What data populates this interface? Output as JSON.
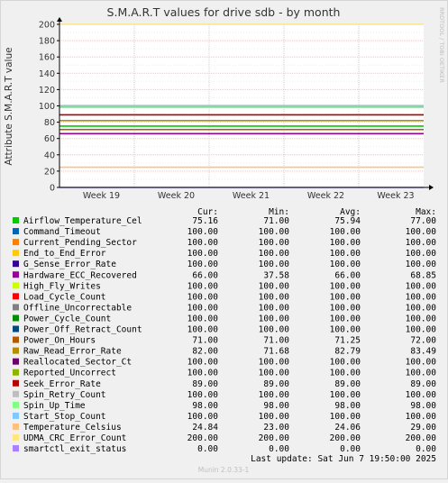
{
  "chart_data": {
    "type": "line",
    "title": "S.M.A.R.T values for drive sdb - by month",
    "ylabel": "Attribute S.M.A.R.T value",
    "ylim": [
      0,
      200
    ],
    "yticks": [
      0,
      20,
      40,
      60,
      80,
      100,
      120,
      140,
      160,
      180,
      200
    ],
    "x_ticks": [
      "Week 19",
      "Week 20",
      "Week 21",
      "Week 22",
      "Week 23"
    ],
    "grid": true,
    "watermark": "RRDTOOL / TOBI OETIKER",
    "columns": [
      "Cur:",
      "Min:",
      "Avg:",
      "Max:"
    ],
    "series": [
      {
        "name": "Airflow_Temperature_Cel",
        "color": "#00cc00",
        "cur": "75.16",
        "min": "71.00",
        "avg": "75.94",
        "max": "77.00"
      },
      {
        "name": "Command_Timeout",
        "color": "#0066b3",
        "cur": "100.00",
        "min": "100.00",
        "avg": "100.00",
        "max": "100.00"
      },
      {
        "name": "Current_Pending_Sector",
        "color": "#ff8000",
        "cur": "100.00",
        "min": "100.00",
        "avg": "100.00",
        "max": "100.00"
      },
      {
        "name": "End_to_End_Error",
        "color": "#ffcc00",
        "cur": "100.00",
        "min": "100.00",
        "avg": "100.00",
        "max": "100.00"
      },
      {
        "name": "G_Sense_Error_Rate",
        "color": "#330099",
        "cur": "100.00",
        "min": "100.00",
        "avg": "100.00",
        "max": "100.00"
      },
      {
        "name": "Hardware_ECC_Recovered",
        "color": "#990099",
        "cur": "66.00",
        "min": "37.58",
        "avg": "66.00",
        "max": "68.85"
      },
      {
        "name": "High_Fly_Writes",
        "color": "#ccff00",
        "cur": "100.00",
        "min": "100.00",
        "avg": "100.00",
        "max": "100.00"
      },
      {
        "name": "Load_Cycle_Count",
        "color": "#ff0000",
        "cur": "100.00",
        "min": "100.00",
        "avg": "100.00",
        "max": "100.00"
      },
      {
        "name": "Offline_Uncorrectable",
        "color": "#808080",
        "cur": "100.00",
        "min": "100.00",
        "avg": "100.00",
        "max": "100.00"
      },
      {
        "name": "Power_Cycle_Count",
        "color": "#008f00",
        "cur": "100.00",
        "min": "100.00",
        "avg": "100.00",
        "max": "100.00"
      },
      {
        "name": "Power_Off_Retract_Count",
        "color": "#00487d",
        "cur": "100.00",
        "min": "100.00",
        "avg": "100.00",
        "max": "100.00"
      },
      {
        "name": "Power_On_Hours",
        "color": "#b35a00",
        "cur": "71.00",
        "min": "71.00",
        "avg": "71.25",
        "max": "72.00"
      },
      {
        "name": "Raw_Read_Error_Rate",
        "color": "#b38f00",
        "cur": "82.00",
        "min": "71.68",
        "avg": "82.79",
        "max": "83.49"
      },
      {
        "name": "Reallocated_Sector_Ct",
        "color": "#6b006b",
        "cur": "100.00",
        "min": "100.00",
        "avg": "100.00",
        "max": "100.00"
      },
      {
        "name": "Reported_Uncorrect",
        "color": "#8fb300",
        "cur": "100.00",
        "min": "100.00",
        "avg": "100.00",
        "max": "100.00"
      },
      {
        "name": "Seek_Error_Rate",
        "color": "#b30000",
        "cur": "89.00",
        "min": "89.00",
        "avg": "89.00",
        "max": "89.00"
      },
      {
        "name": "Spin_Retry_Count",
        "color": "#bebebe",
        "cur": "100.00",
        "min": "100.00",
        "avg": "100.00",
        "max": "100.00"
      },
      {
        "name": "Spin_Up_Time",
        "color": "#80ff80",
        "cur": "98.00",
        "min": "98.00",
        "avg": "98.00",
        "max": "98.00"
      },
      {
        "name": "Start_Stop_Count",
        "color": "#80c9ff",
        "cur": "100.00",
        "min": "100.00",
        "avg": "100.00",
        "max": "100.00"
      },
      {
        "name": "Temperature_Celsius",
        "color": "#ffc080",
        "cur": "24.84",
        "min": "23.00",
        "avg": "24.06",
        "max": "29.00"
      },
      {
        "name": "UDMA_CRC_Error_Count",
        "color": "#ffe680",
        "cur": "200.00",
        "min": "200.00",
        "avg": "200.00",
        "max": "200.00"
      },
      {
        "name": "smartctl_exit_status",
        "color": "#aa80ff",
        "cur": "0.00",
        "min": "0.00",
        "avg": "0.00",
        "max": "0.00"
      }
    ],
    "last_update": "Last update:  Sat Jun  7 19:50:00 2025",
    "footer": "Munin 2.0.33-1"
  }
}
